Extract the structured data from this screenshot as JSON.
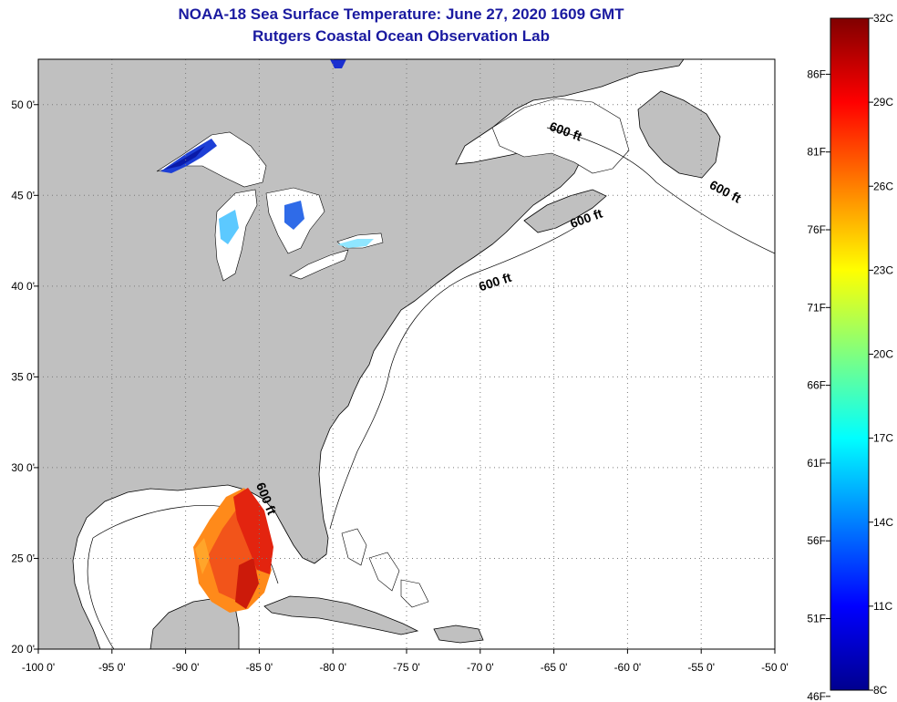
{
  "title": {
    "line1": "NOAA-18 Sea Surface Temperature:  June 27, 2020 1609 GMT",
    "line2": "Rutgers Coastal Ocean Observation Lab"
  },
  "map": {
    "lon_range": [
      -100,
      -50
    ],
    "lat_range": [
      20,
      52.5
    ],
    "lon_ticks": [
      {
        "lon": -100,
        "label": "-100 0'"
      },
      {
        "lon": -95,
        "label": "-95 0'"
      },
      {
        "lon": -90,
        "label": "-90 0'"
      },
      {
        "lon": -85,
        "label": "-85 0'"
      },
      {
        "lon": -80,
        "label": "-80 0'"
      },
      {
        "lon": -75,
        "label": "-75 0'"
      },
      {
        "lon": -70,
        "label": "-70 0'"
      },
      {
        "lon": -65,
        "label": "-65 0'"
      },
      {
        "lon": -60,
        "label": "-60 0'"
      },
      {
        "lon": -55,
        "label": "-55 0'"
      },
      {
        "lon": -50,
        "label": "-50 0'"
      }
    ],
    "lat_ticks": [
      {
        "lat": 20,
        "label": "20 0'"
      },
      {
        "lat": 25,
        "label": "25 0'"
      },
      {
        "lat": 30,
        "label": "30 0'"
      },
      {
        "lat": 35,
        "label": "35 0'"
      },
      {
        "lat": 40,
        "label": "40 0'"
      },
      {
        "lat": 45,
        "label": "45 0'"
      },
      {
        "lat": 50,
        "label": "50 0'"
      }
    ],
    "contour_labels": [
      {
        "text": "600 ft",
        "lon": -64.3,
        "lat": 48.3,
        "angle": 20
      },
      {
        "text": "600 ft",
        "lon": -53.5,
        "lat": 45.0,
        "angle": 28
      },
      {
        "text": "600 ft",
        "lon": -62.7,
        "lat": 43.5,
        "angle": -20
      },
      {
        "text": "600 ft",
        "lon": -68.9,
        "lat": 40.0,
        "angle": -18
      },
      {
        "text": "600 ft",
        "lon": -84.8,
        "lat": 28.2,
        "angle": 68
      }
    ],
    "colors": {
      "land": "#c0c0c0",
      "ocean_nodata": "#ffffff",
      "grid": "#7a7a7a"
    }
  },
  "colorbar": {
    "min_c": 8,
    "max_c": 32,
    "celsius_labels": [
      {
        "value": 32,
        "label": "32C"
      },
      {
        "value": 29,
        "label": "29C"
      },
      {
        "value": 26,
        "label": "26C"
      },
      {
        "value": 23,
        "label": "23C"
      },
      {
        "value": 20,
        "label": "20C"
      },
      {
        "value": 17,
        "label": "17C"
      },
      {
        "value": 14,
        "label": "14C"
      },
      {
        "value": 11,
        "label": "11C"
      },
      {
        "value": 8,
        "label": "8C"
      }
    ],
    "fahrenheit_labels": [
      {
        "value": 86,
        "label": "86F"
      },
      {
        "value": 81,
        "label": "81F"
      },
      {
        "value": 76,
        "label": "76F"
      },
      {
        "value": 71,
        "label": "71F"
      },
      {
        "value": 66,
        "label": "66F"
      },
      {
        "value": 61,
        "label": "61F"
      },
      {
        "value": 56,
        "label": "56F"
      },
      {
        "value": 51,
        "label": "51F"
      },
      {
        "value": 46,
        "label": "46F"
      }
    ]
  }
}
